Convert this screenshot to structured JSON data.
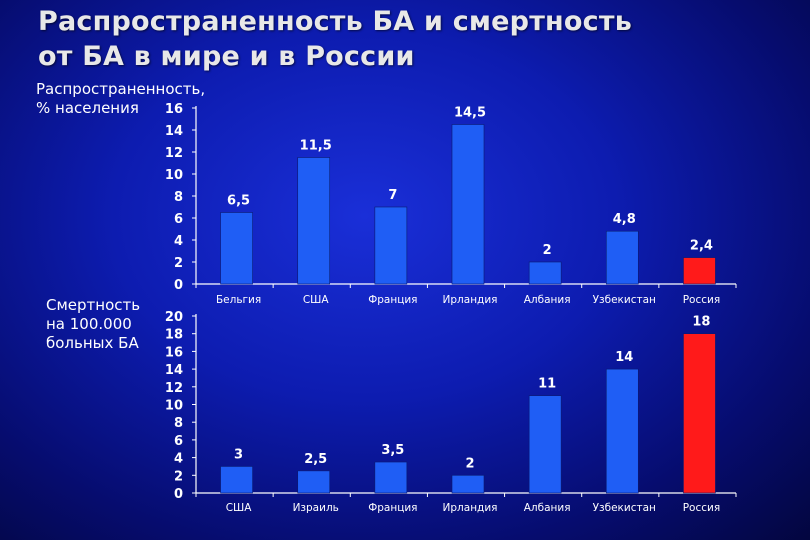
{
  "title": {
    "line1": "Распространенность БА и смертность",
    "line2": "от БА в мире и в России"
  },
  "colors": {
    "bar": "#1f5ef5",
    "highlight": "#ff1a1a",
    "axis": "#ffffff",
    "text": "#ffffff"
  },
  "chart_data": [
    {
      "type": "bar",
      "ylabel": "Распространенность,\n% населения",
      "categories": [
        "Бельгия",
        "США",
        "Франция",
        "Ирландия",
        "Албания",
        "Узбекистан",
        "Россия"
      ],
      "values": [
        6.5,
        11.5,
        7,
        14.5,
        2,
        4.8,
        2.4
      ],
      "value_labels": [
        "6,5",
        "11,5",
        "7",
        "14,5",
        "2",
        "4,8",
        "2,4"
      ],
      "highlight": "Россия",
      "ylim": [
        0,
        16
      ],
      "yticks": [
        "0",
        "2",
        "4",
        "6",
        "8",
        "10",
        "12",
        "14",
        "16"
      ],
      "grid": false
    },
    {
      "type": "bar",
      "ylabel": "Смертность\nна 100.000\nбольных БА",
      "categories": [
        "США",
        "Израиль",
        "Франция",
        "Ирландия",
        "Албания",
        "Узбекистан",
        "Россия"
      ],
      "values": [
        3,
        2.5,
        3.5,
        2,
        11,
        14,
        18
      ],
      "value_labels": [
        "3",
        "2,5",
        "3,5",
        "2",
        "11",
        "14",
        "18"
      ],
      "highlight": "Россия",
      "ylim": [
        0,
        20
      ],
      "yticks": [
        "0",
        "2",
        "4",
        "6",
        "8",
        "10",
        "12",
        "14",
        "16",
        "18",
        "20"
      ],
      "grid": false
    }
  ]
}
